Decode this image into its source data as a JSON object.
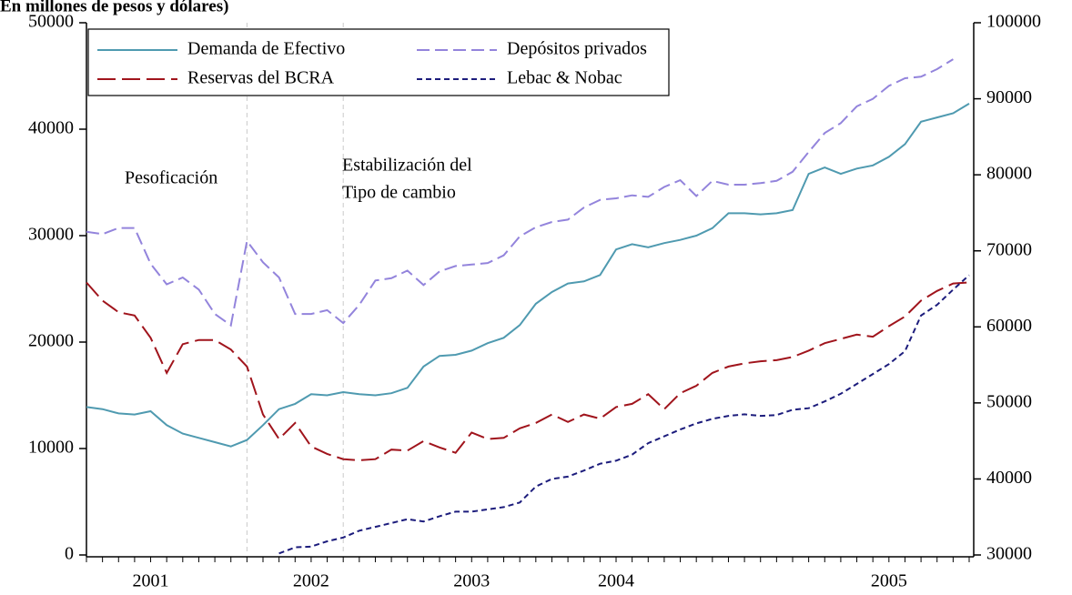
{
  "chart_data": {
    "type": "line",
    "title": "En millones de pesos y dólares)",
    "categories": [
      null,
      null,
      null,
      null,
      "2001",
      null,
      null,
      null,
      null,
      null,
      null,
      null,
      null,
      null,
      "2002",
      null,
      null,
      null,
      null,
      null,
      null,
      null,
      null,
      null,
      "2003",
      null,
      null,
      null,
      null,
      null,
      null,
      null,
      null,
      "2004",
      null,
      null,
      null,
      null,
      null,
      null,
      null,
      null,
      null,
      null,
      null,
      null,
      null,
      null,
      null,
      null,
      "2005",
      null,
      null,
      null,
      null,
      null
    ],
    "ylim": [
      0,
      50000
    ],
    "yticks": [
      0,
      10000,
      20000,
      30000,
      40000,
      50000
    ],
    "y2lim": [
      30000,
      100000
    ],
    "y2ticks": [
      30000,
      40000,
      50000,
      60000,
      70000,
      80000,
      90000,
      100000
    ],
    "vlines": [
      10,
      16
    ],
    "annotations": [
      "Pesoficación",
      "Estabilización del",
      "Tipo de cambio"
    ],
    "series": [
      {
        "name": "Demanda de Efectivo",
        "color": "#4f9ab0",
        "values": [
          13900,
          13700,
          13300,
          13200,
          13500,
          12200,
          11400,
          11000,
          10600,
          10200,
          10800,
          12200,
          13700,
          14200,
          15100,
          15000,
          15300,
          15100,
          15000,
          15200,
          15700,
          17700,
          18700,
          18800,
          19200,
          19900,
          20400,
          21600,
          23600,
          24700,
          25500,
          25700,
          26300,
          28700,
          29200,
          28900,
          29300,
          29600,
          30000,
          30700,
          32100,
          32100,
          32000,
          32100,
          32400,
          35800,
          36400,
          35800,
          36300,
          36600,
          37400,
          38600,
          40700,
          41100,
          41500,
          42400
        ]
      },
      {
        "name": "Reservas del BCRA",
        "color": "#a0141c",
        "values": [
          25600,
          23900,
          22800,
          22500,
          20400,
          17100,
          19800,
          20200,
          20200,
          19300,
          17700,
          13200,
          10900,
          12400,
          10200,
          9500,
          9000,
          8900,
          9000,
          9900,
          9800,
          10700,
          10100,
          9600,
          11500,
          10900,
          11000,
          11900,
          12400,
          13200,
          12500,
          13200,
          12800,
          13900,
          14200,
          15100,
          13700,
          15200,
          15900,
          17100,
          17700,
          18000,
          18200,
          18300,
          18600,
          19200,
          19900,
          20300,
          20700,
          20500,
          21500,
          22400,
          23900,
          24800,
          25500,
          25600
        ]
      },
      {
        "name": "Depósitos privados",
        "color": "#9384dc",
        "axis": "y2",
        "values": [
          72500,
          72200,
          73000,
          73000,
          68300,
          65600,
          66500,
          64900,
          61700,
          60200,
          71300,
          68500,
          66500,
          61700,
          61700,
          62200,
          60500,
          62900,
          66100,
          66400,
          67400,
          65500,
          67300,
          68000,
          68200,
          68400,
          69400,
          71900,
          73100,
          73800,
          74100,
          75700,
          76700,
          76900,
          77300,
          77100,
          78400,
          79300,
          77200,
          79200,
          78700,
          78700,
          78900,
          79200,
          80400,
          83000,
          85500,
          86800,
          89000,
          90000,
          91700,
          92700,
          92900,
          93900,
          95200,
          null
        ]
      },
      {
        "name": "Lebac & Nobac",
        "color": "#1c1c7c",
        "axis": "y2",
        "values": [
          null,
          null,
          null,
          null,
          null,
          null,
          null,
          null,
          null,
          null,
          null,
          null,
          30200,
          31000,
          31100,
          31800,
          32300,
          33200,
          33700,
          34200,
          34700,
          34400,
          35100,
          35700,
          35700,
          36000,
          36300,
          36900,
          39000,
          40000,
          40300,
          41100,
          42000,
          42400,
          43200,
          44700,
          45600,
          46500,
          47300,
          47900,
          48300,
          48500,
          48300,
          48400,
          49100,
          49300,
          50200,
          51200,
          52500,
          53800,
          55100,
          56800,
          61500,
          62900,
          64900,
          66800
        ]
      }
    ]
  }
}
